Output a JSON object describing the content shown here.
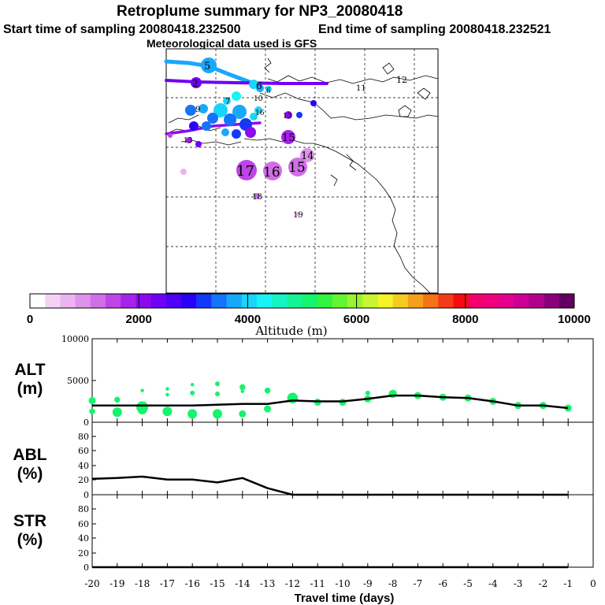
{
  "header": {
    "title": "Retroplume summary for NP3_20080418",
    "start_time": "Start time of sampling 20080418.232500",
    "end_time": "End time of sampling 20080418.232521",
    "met_data": "Meteorological data used is GFS"
  },
  "colorbar": {
    "ticks": [
      "0",
      "2000",
      "4000",
      "6000",
      "8000",
      "10000"
    ],
    "label": "Altitude (m)",
    "min": 0,
    "max": 10000,
    "colors": [
      "#ffffff",
      "#f4d2f6",
      "#eab4f0",
      "#de93ea",
      "#d06ee6",
      "#bd45e6",
      "#a823ea",
      "#8b0bee",
      "#7000f4",
      "#4e00f6",
      "#2a00f8",
      "#1438fa",
      "#1474fa",
      "#18a8fa",
      "#1ad4fa",
      "#18f4f4",
      "#16f4c6",
      "#14f494",
      "#14f46c",
      "#30f43e",
      "#64f434",
      "#98f432",
      "#c8f432",
      "#f4f426",
      "#f4cc20",
      "#f4a01a",
      "#f47218",
      "#f43a18",
      "#f40c10",
      "#f4006c",
      "#f0007c",
      "#e4008c",
      "#cc0096",
      "#b0008c",
      "#8a007a",
      "#620060"
    ]
  },
  "map_labels": [
    "12",
    "11",
    "10",
    "16",
    "13",
    "15",
    "14",
    "17",
    "16",
    "15",
    "18",
    "19",
    "13",
    "9",
    "7",
    "6",
    "5",
    "2",
    "6"
  ],
  "chart_data": [
    {
      "type": "line",
      "panel": "ALT",
      "ylabel_line1": "ALT",
      "ylabel_line2": "(m)",
      "ylim": [
        0,
        10000
      ],
      "yticks": [
        "10000",
        "5000",
        "0"
      ],
      "xlim": [
        -20,
        0
      ],
      "x": [
        -20,
        -19,
        -18,
        -17,
        -16,
        -15,
        -14,
        -13,
        -12,
        -11,
        -10,
        -9,
        -8,
        -7,
        -6,
        -5,
        -4,
        -3,
        -2,
        -1
      ],
      "series": [
        {
          "name": "mean altitude",
          "values": [
            2000,
            2000,
            2000,
            2000,
            2000,
            2100,
            2200,
            2200,
            2600,
            2500,
            2500,
            2800,
            3200,
            3200,
            3000,
            2900,
            2500,
            2000,
            2000,
            1700
          ]
        }
      ],
      "plume_points": [
        {
          "x": -20,
          "y": 2600,
          "s": 3
        },
        {
          "x": -20,
          "y": 1300,
          "s": 2.5
        },
        {
          "x": -19,
          "y": 2700,
          "s": 2.5
        },
        {
          "x": -19,
          "y": 1200,
          "s": 4
        },
        {
          "x": -18,
          "y": 3800,
          "s": 1.5
        },
        {
          "x": -18,
          "y": 1800,
          "s": 5
        },
        {
          "x": -18,
          "y": 1500,
          "s": 4
        },
        {
          "x": -17,
          "y": 4000,
          "s": 1.5
        },
        {
          "x": -17,
          "y": 3300,
          "s": 1.5
        },
        {
          "x": -17,
          "y": 1300,
          "s": 4
        },
        {
          "x": -16,
          "y": 4500,
          "s": 1.5
        },
        {
          "x": -16,
          "y": 3500,
          "s": 2
        },
        {
          "x": -16,
          "y": 1000,
          "s": 4
        },
        {
          "x": -15,
          "y": 4600,
          "s": 2
        },
        {
          "x": -15,
          "y": 3400,
          "s": 2
        },
        {
          "x": -15,
          "y": 1000,
          "s": 4
        },
        {
          "x": -14,
          "y": 4200,
          "s": 2.5
        },
        {
          "x": -14,
          "y": 3700,
          "s": 1.5
        },
        {
          "x": -14,
          "y": 1000,
          "s": 3
        },
        {
          "x": -13,
          "y": 3800,
          "s": 2.5
        },
        {
          "x": -13,
          "y": 1600,
          "s": 3
        },
        {
          "x": -12,
          "y": 2900,
          "s": 4.5
        },
        {
          "x": -11,
          "y": 2400,
          "s": 3
        },
        {
          "x": -10,
          "y": 2400,
          "s": 3
        },
        {
          "x": -9,
          "y": 2800,
          "s": 3
        },
        {
          "x": -9,
          "y": 3500,
          "s": 2
        },
        {
          "x": -8,
          "y": 3400,
          "s": 3.5
        },
        {
          "x": -7,
          "y": 3200,
          "s": 3
        },
        {
          "x": -6,
          "y": 3000,
          "s": 3
        },
        {
          "x": -5,
          "y": 2900,
          "s": 3
        },
        {
          "x": -4,
          "y": 2500,
          "s": 3
        },
        {
          "x": -3,
          "y": 2000,
          "s": 3
        },
        {
          "x": -2,
          "y": 2000,
          "s": 3
        },
        {
          "x": -1,
          "y": 1700,
          "s": 3
        }
      ]
    },
    {
      "type": "line",
      "panel": "ABL",
      "ylabel_line1": "ABL",
      "ylabel_line2": "(%)",
      "ylim": [
        0,
        100
      ],
      "yticks": [
        "80",
        "60",
        "40",
        "20",
        "0"
      ],
      "xlim": [
        -20,
        0
      ],
      "x": [
        -20,
        -19,
        -18,
        -17,
        -16,
        -15,
        -14,
        -13,
        -12,
        -11,
        -10,
        -9,
        -8,
        -7,
        -6,
        -5,
        -4,
        -3,
        -2,
        -1
      ],
      "series": [
        {
          "name": "ABL fraction",
          "values": [
            22,
            23,
            25,
            21,
            21,
            17,
            23,
            9,
            0,
            0,
            0,
            0,
            0,
            0,
            0,
            0,
            0,
            0,
            0,
            0
          ]
        }
      ]
    },
    {
      "type": "line",
      "panel": "STR",
      "ylabel_line1": "STR",
      "ylabel_line2": "(%)",
      "ylim": [
        0,
        100
      ],
      "yticks": [
        "80",
        "60",
        "40",
        "20",
        "0"
      ],
      "xlim": [
        -20,
        0
      ],
      "x": [
        -20,
        -19,
        -18,
        -17,
        -16,
        -15,
        -14,
        -13,
        -12,
        -11,
        -10,
        -9,
        -8,
        -7,
        -6,
        -5,
        -4,
        -3,
        -2,
        -1
      ],
      "series": [
        {
          "name": "stratospheric fraction",
          "values": [
            0,
            0,
            0,
            0,
            0,
            0,
            0,
            0,
            0,
            0,
            0,
            0,
            0,
            0,
            0,
            0,
            0,
            0,
            0,
            0
          ]
        }
      ],
      "xticks": [
        "-20",
        "-19",
        "-18",
        "-17",
        "-16",
        "-15",
        "-14",
        "-13",
        "-12",
        "-11",
        "-10",
        "-9",
        "-8",
        "-7",
        "-6",
        "-5",
        "-4",
        "-3",
        "-2",
        "-1",
        "0"
      ],
      "xlabel": "Travel time (days)"
    }
  ]
}
